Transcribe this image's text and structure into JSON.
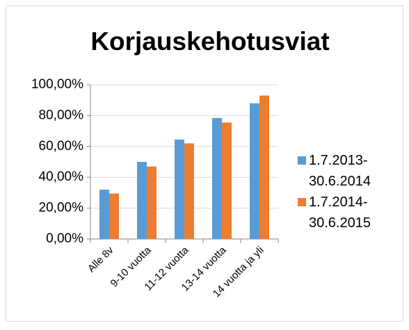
{
  "chart_data": {
    "type": "bar",
    "title": "Korjauskehotusviat",
    "categories": [
      "Alle 8v",
      "9-10 vuotta",
      "11-12 vuotta",
      "13-14 vuotta",
      "14 vuotta ja yli"
    ],
    "series": [
      {
        "name": "1.7.2013-30.6.2014",
        "color": "#5b9bd5",
        "values": [
          32,
          50,
          64.5,
          78.5,
          88
        ]
      },
      {
        "name": "1.7.2014-30.6.2015",
        "color": "#ed7d31",
        "values": [
          29.5,
          47,
          62,
          75.5,
          93
        ]
      }
    ],
    "ylim": [
      0,
      100
    ],
    "yticks": [
      {
        "value": 0,
        "label": "0,00%"
      },
      {
        "value": 20,
        "label": "20,00%"
      },
      {
        "value": 40,
        "label": "40,00%"
      },
      {
        "value": 60,
        "label": "60,00%"
      },
      {
        "value": 80,
        "label": "80,00%"
      },
      {
        "value": 100,
        "label": "100,00%"
      }
    ],
    "grid": true,
    "legend": "right"
  }
}
